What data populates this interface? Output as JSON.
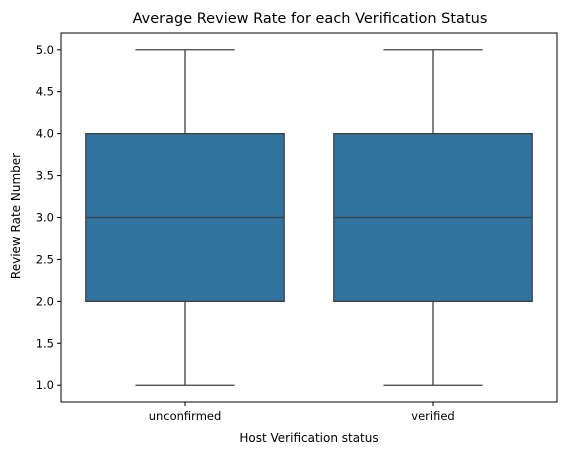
{
  "chart_data": {
    "type": "box",
    "title": "Average Review Rate for each Verification Status",
    "xlabel": "Host Verification status",
    "ylabel": "Review Rate Number",
    "categories": [
      "unconfirmed",
      "verified"
    ],
    "yticks": [
      "1.0",
      "1.5",
      "2.0",
      "2.5",
      "3.0",
      "3.5",
      "4.0",
      "4.5",
      "5.0"
    ],
    "ylim": [
      0.8,
      5.2
    ],
    "grid": false,
    "boxes": [
      {
        "category": "unconfirmed",
        "min": 1.0,
        "q1": 2.0,
        "median": 3.0,
        "q3": 4.0,
        "max": 5.0
      },
      {
        "category": "verified",
        "min": 1.0,
        "q1": 2.0,
        "median": 3.0,
        "q3": 4.0,
        "max": 5.0
      }
    ],
    "colors": {
      "box_fill": "#3274a1",
      "line": "#3f3f3f",
      "axis": "#000000"
    }
  }
}
